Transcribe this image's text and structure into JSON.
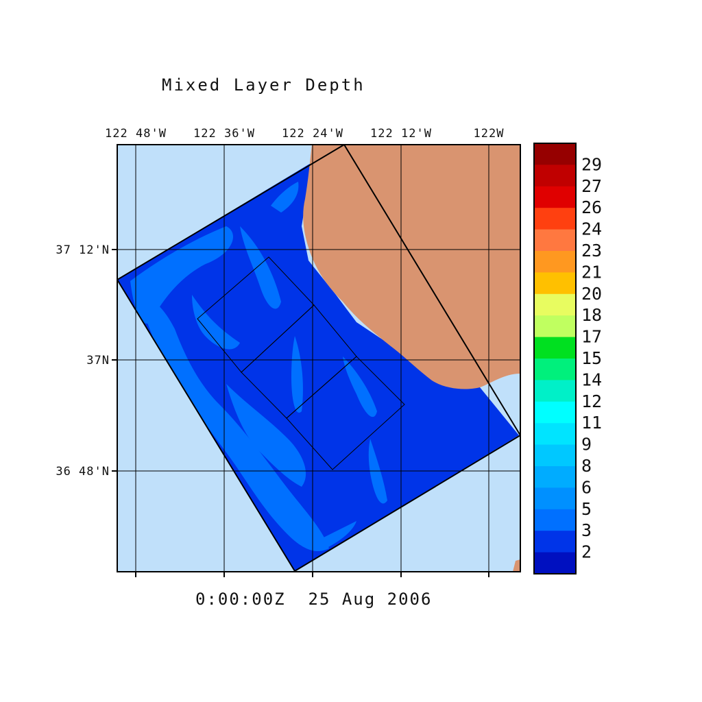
{
  "title": "Mixed Layer Depth",
  "timestamp": "0:00:00Z  25 Aug 2006",
  "axes": {
    "lon_labels": [
      "122 48'W",
      "122 36'W",
      "122 24'W",
      "122 12'W",
      "122W"
    ],
    "lat_labels": [
      "37 12'N",
      "37N",
      "36 48'N"
    ]
  },
  "colors": {
    "ocean_background": "#c0e0fa",
    "land": "#d99470",
    "grid": "#000000"
  },
  "colorbar": {
    "labels": [
      "29",
      "27",
      "26",
      "24",
      "23",
      "21",
      "20",
      "18",
      "17",
      "15",
      "14",
      "12",
      "11",
      "9",
      "8",
      "6",
      "5",
      "3",
      "2"
    ],
    "colors": [
      "#960000",
      "#c00000",
      "#e00000",
      "#ff4010",
      "#ff7840",
      "#ff9820",
      "#ffc000",
      "#e8fc60",
      "#c0ff60",
      "#00e020",
      "#00f07c",
      "#00f0c8",
      "#00ffff",
      "#00e4ff",
      "#00c8ff",
      "#00acff",
      "#0090ff",
      "#0070ff",
      "#0034e8",
      "#0010c0"
    ]
  },
  "field": {
    "description_colors": [
      "#0034e8",
      "#0070ff"
    ]
  }
}
